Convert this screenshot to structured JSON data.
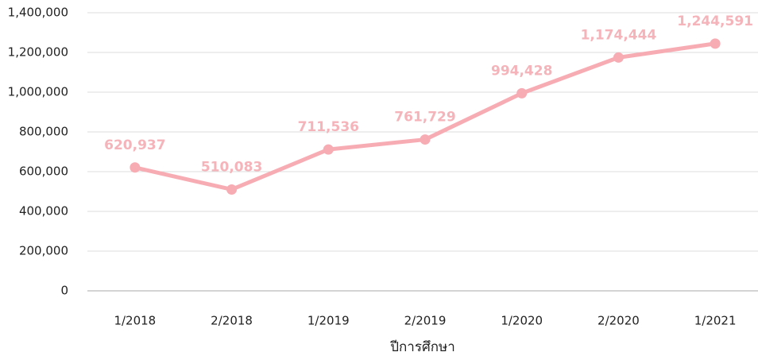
{
  "chart_data": {
    "type": "line",
    "x_label": "ปีการศึกษา",
    "categories": [
      "1/2018",
      "2/2018",
      "1/2019",
      "2/2019",
      "1/2020",
      "2/2020",
      "1/2021"
    ],
    "series": [
      {
        "name": null,
        "color": "#f7acb4",
        "values": [
          620937,
          510083,
          711536,
          761729,
          994428,
          1174444,
          1244591
        ],
        "value_labels": [
          "620,937",
          "510,083",
          "711,536",
          "761,729",
          "994,428",
          "1,174,444",
          "1,244,591"
        ]
      }
    ],
    "ylim": [
      0,
      1400000
    ],
    "yticks": [
      0,
      {
        "value": 200000,
        "label": "200,000"
      },
      {
        "value": 400000,
        "label": "400,000"
      },
      {
        "value": 600000,
        "label": "600,000"
      },
      {
        "value": 800000,
        "label": "800,000"
      },
      {
        "value": 1000000,
        "label": "1,000,000"
      },
      {
        "value": 1200000,
        "label": "1,200,000"
      },
      {
        "value": 1400000,
        "label": "1,400,000"
      }
    ],
    "grid": true
  }
}
